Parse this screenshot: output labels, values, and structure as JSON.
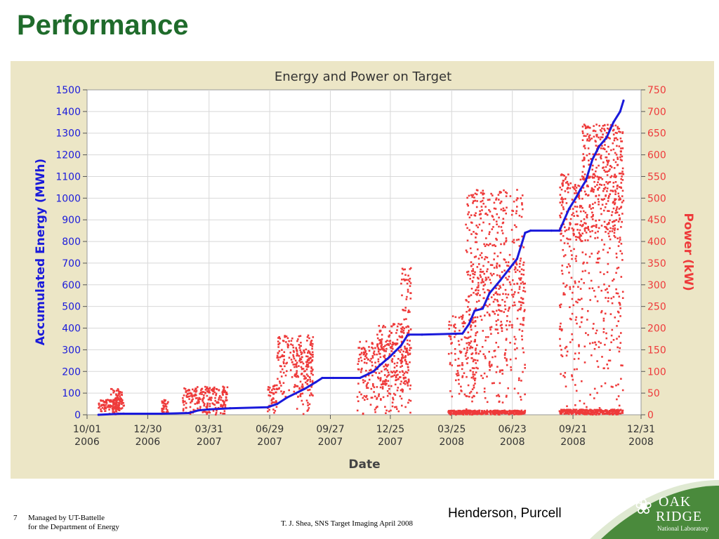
{
  "slide": {
    "title": "Performance",
    "credit": "Henderson, Purcell",
    "footer_page": "7",
    "footer_org_line1": "Managed by UT-Battelle",
    "footer_org_line2": "for the Department of Energy",
    "footer_center": "T. J. Shea, SNS Target Imaging April 2008",
    "logo_line1": "OAK",
    "logo_line2": "RIDGE",
    "logo_line3": "National Laboratory"
  },
  "colors": {
    "title": "#1f6b2b",
    "panel_bg": "#ece6c6",
    "energy": "#1a1adb",
    "power": "#ee3a3a",
    "logo_green": "#4a8a3c"
  },
  "chart_data": {
    "type": "line",
    "title": "Energy and Power on Target",
    "xlabel": "Date",
    "ylabel_left": "Accumulated Energy (MWh)",
    "ylabel_right": "Power (kW)",
    "x_ticks": [
      {
        "line1": "10/01",
        "line2": "2006",
        "date": "2006-10-01"
      },
      {
        "line1": "12/30",
        "line2": "2006",
        "date": "2006-12-30"
      },
      {
        "line1": "03/31",
        "line2": "2007",
        "date": "2007-03-31"
      },
      {
        "line1": "06/29",
        "line2": "2007",
        "date": "2007-06-29"
      },
      {
        "line1": "09/27",
        "line2": "2007",
        "date": "2007-09-27"
      },
      {
        "line1": "12/25",
        "line2": "2007",
        "date": "2007-12-25"
      },
      {
        "line1": "03/25",
        "line2": "2008",
        "date": "2008-03-25"
      },
      {
        "line1": "06/23",
        "line2": "2008",
        "date": "2008-06-23"
      },
      {
        "line1": "09/21",
        "line2": "2008",
        "date": "2008-09-21"
      },
      {
        "line1": "12/31",
        "line2": "2008",
        "date": "2008-12-31"
      }
    ],
    "xlim": [
      "2006-10-01",
      "2008-12-31"
    ],
    "ylim_left": [
      0,
      1500
    ],
    "ylim_right": [
      0,
      750
    ],
    "y_ticks_left": [
      0,
      100,
      200,
      300,
      400,
      500,
      600,
      700,
      800,
      900,
      1000,
      1100,
      1200,
      1300,
      1400,
      1500
    ],
    "y_ticks_right": [
      0,
      50,
      100,
      150,
      200,
      250,
      300,
      350,
      400,
      450,
      500,
      550,
      600,
      650,
      700,
      750
    ],
    "grid": true,
    "series": [
      {
        "name": "Accumulated Energy (MWh)",
        "axis": "left",
        "style": "line",
        "points": [
          [
            "2006-10-18",
            0
          ],
          [
            "2006-11-20",
            5
          ],
          [
            "2007-01-20",
            5
          ],
          [
            "2007-03-01",
            8
          ],
          [
            "2007-03-15",
            20
          ],
          [
            "2007-04-01",
            25
          ],
          [
            "2007-05-01",
            30
          ],
          [
            "2007-06-26",
            35
          ],
          [
            "2007-07-10",
            50
          ],
          [
            "2007-07-25",
            80
          ],
          [
            "2007-08-20",
            120
          ],
          [
            "2007-09-05",
            150
          ],
          [
            "2007-09-15",
            170
          ],
          [
            "2007-10-01",
            170
          ],
          [
            "2007-11-10",
            170
          ],
          [
            "2007-11-30",
            200
          ],
          [
            "2007-12-10",
            230
          ],
          [
            "2007-12-25",
            270
          ],
          [
            "2008-01-10",
            320
          ],
          [
            "2008-01-20",
            370
          ],
          [
            "2008-02-10",
            370
          ],
          [
            "2008-04-10",
            375
          ],
          [
            "2008-04-20",
            420
          ],
          [
            "2008-04-28",
            480
          ],
          [
            "2008-05-10",
            490
          ],
          [
            "2008-05-20",
            560
          ],
          [
            "2008-06-05",
            620
          ],
          [
            "2008-06-20",
            680
          ],
          [
            "2008-06-30",
            720
          ],
          [
            "2008-07-12",
            840
          ],
          [
            "2008-07-20",
            850
          ],
          [
            "2008-08-20",
            850
          ],
          [
            "2008-09-01",
            850
          ],
          [
            "2008-09-08",
            900
          ],
          [
            "2008-09-15",
            950
          ],
          [
            "2008-09-25",
            1000
          ],
          [
            "2008-10-02",
            1040
          ],
          [
            "2008-10-10",
            1080
          ],
          [
            "2008-10-20",
            1180
          ],
          [
            "2008-10-30",
            1240
          ],
          [
            "2008-11-10",
            1280
          ],
          [
            "2008-11-20",
            1350
          ],
          [
            "2008-11-30",
            1400
          ],
          [
            "2008-12-05",
            1450
          ]
        ]
      },
      {
        "name": "Power (kW)",
        "axis": "right",
        "style": "scatter",
        "clusters": [
          {
            "start": "2006-10-18",
            "end": "2006-11-25",
            "low": 0,
            "high": 35
          },
          {
            "start": "2006-11-05",
            "end": "2006-11-22",
            "low": 5,
            "high": 60
          },
          {
            "start": "2007-01-20",
            "end": "2007-01-30",
            "low": 0,
            "high": 35
          },
          {
            "start": "2007-02-20",
            "end": "2007-04-28",
            "low": 0,
            "high": 65
          },
          {
            "start": "2007-06-26",
            "end": "2007-07-10",
            "low": 0,
            "high": 70
          },
          {
            "start": "2007-07-10",
            "end": "2007-09-03",
            "low": 40,
            "high": 185
          },
          {
            "start": "2007-08-05",
            "end": "2007-09-01",
            "low": 0,
            "high": 155
          },
          {
            "start": "2007-11-06",
            "end": "2008-01-25",
            "low": 0,
            "high": 170
          },
          {
            "start": "2007-12-05",
            "end": "2008-01-22",
            "low": 40,
            "high": 210
          },
          {
            "start": "2008-01-10",
            "end": "2008-01-25",
            "low": 150,
            "high": 340
          },
          {
            "start": "2008-03-20",
            "end": "2008-05-01",
            "low": 0,
            "high": 230
          },
          {
            "start": "2008-04-15",
            "end": "2008-07-12",
            "low": 200,
            "high": 520
          },
          {
            "start": "2008-04-15",
            "end": "2008-07-12",
            "low": 0,
            "high": 350
          },
          {
            "start": "2008-03-20",
            "end": "2008-07-12",
            "low": 0,
            "high": 10
          },
          {
            "start": "2008-09-01",
            "end": "2008-12-05",
            "low": 400,
            "high": 555
          },
          {
            "start": "2008-10-05",
            "end": "2008-12-05",
            "low": 540,
            "high": 670
          },
          {
            "start": "2008-09-01",
            "end": "2008-12-05",
            "low": 0,
            "high": 450
          },
          {
            "start": "2008-09-01",
            "end": "2008-12-05",
            "low": 0,
            "high": 12
          }
        ]
      }
    ]
  }
}
